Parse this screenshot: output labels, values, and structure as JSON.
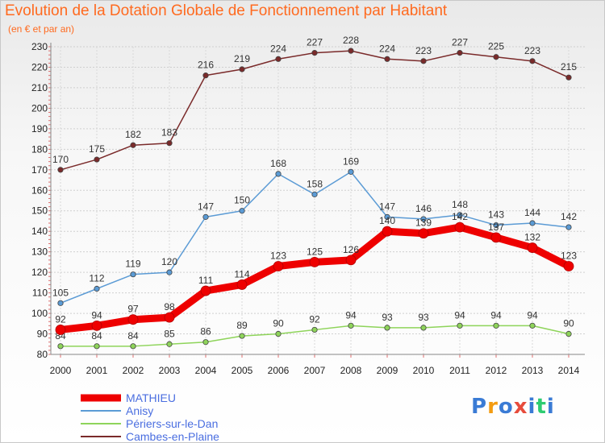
{
  "header": {
    "title": "Evolution de la Dotation Globale de Fonctionnement par Habitant",
    "subtitle": "(en € et par an)"
  },
  "logo": {
    "text": "Proxiti",
    "colors": [
      "#3a7bd5",
      "#f39c12",
      "#3a7bd5",
      "#e74c3c",
      "#3a7bd5",
      "#2ecc71",
      "#3a7bd5"
    ]
  },
  "chart_data": {
    "type": "line",
    "x": [
      "2000",
      "2001",
      "2002",
      "2003",
      "2004",
      "2005",
      "2006",
      "2007",
      "2008",
      "2009",
      "2010",
      "2011",
      "2012",
      "2013",
      "2014"
    ],
    "ylim": [
      80,
      230
    ],
    "yticks": [
      80,
      90,
      100,
      110,
      120,
      130,
      140,
      150,
      160,
      170,
      180,
      190,
      200,
      210,
      220,
      230
    ],
    "grid": true,
    "legend_position": "bottom-left",
    "series": [
      {
        "name": "MATHIEU",
        "color": "#ee0000",
        "width": 9,
        "values": [
          92,
          94,
          97,
          98,
          111,
          114,
          123,
          125,
          126,
          140,
          139,
          142,
          137,
          132,
          123
        ]
      },
      {
        "name": "Anisy",
        "color": "#5b9bd5",
        "width": 1.5,
        "values": [
          105,
          112,
          119,
          120,
          147,
          150,
          168,
          158,
          169,
          147,
          146,
          148,
          143,
          144,
          142
        ]
      },
      {
        "name": "Périers-sur-le-Dan",
        "color": "#8ed45a",
        "width": 1.5,
        "values": [
          84,
          84,
          84,
          85,
          86,
          89,
          90,
          92,
          94,
          93,
          93,
          94,
          94,
          94,
          90
        ]
      },
      {
        "name": "Cambes-en-Plaine",
        "color": "#7a2a2a",
        "width": 1.5,
        "values": [
          170,
          175,
          182,
          183,
          216,
          219,
          224,
          227,
          228,
          224,
          223,
          227,
          225,
          223,
          215
        ]
      }
    ]
  }
}
